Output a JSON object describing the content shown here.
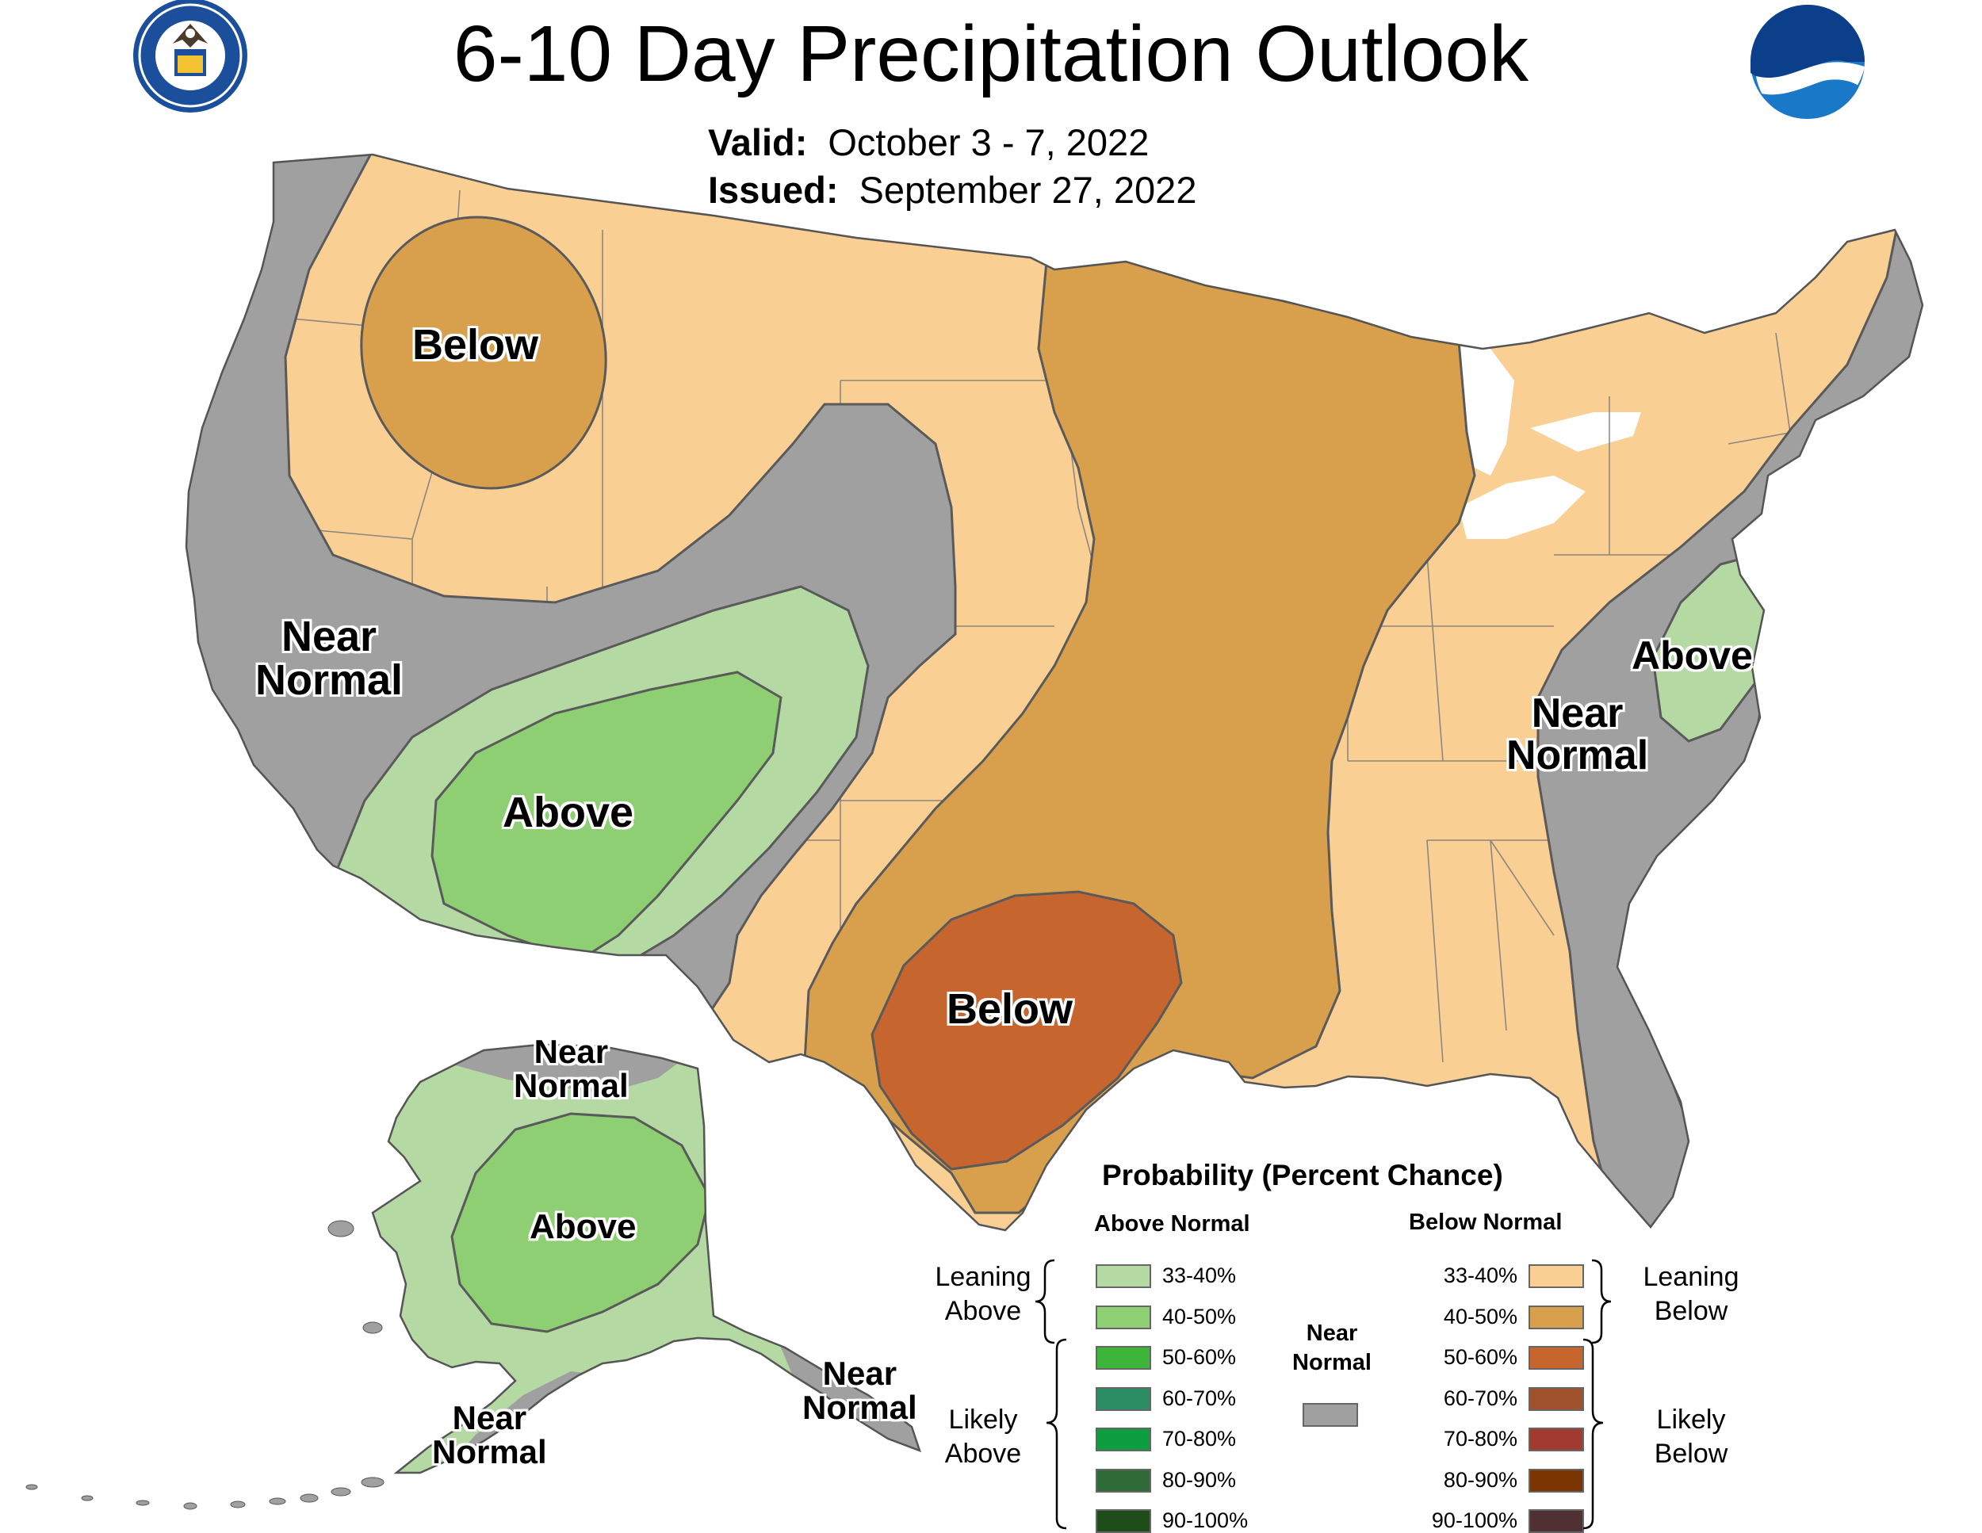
{
  "header": {
    "title": "6-10 Day Precipitation Outlook",
    "valid_label": "Valid:",
    "valid_value": "October 3 - 7, 2022",
    "issued_label": "Issued:",
    "issued_value": "September 27, 2022"
  },
  "logos": {
    "doc_seal": "DEPARTMENT OF COMMERCE · UNITED STATES OF AMERICA",
    "noaa": "NOAA"
  },
  "colors": {
    "near_normal": "#a0a0a0",
    "above_33_40": "#b4d9a3",
    "above_40_50": "#8dcf72",
    "above_50_60": "#3db53b",
    "above_60_70": "#2c8c63",
    "above_70_80": "#0b9d3e",
    "above_80_90": "#2e6a36",
    "above_90_100": "#1f4d19",
    "below_33_40": "#f9cf94",
    "below_40_50": "#d8a04c",
    "below_50_60": "#c7652f",
    "below_60_70": "#a0522d",
    "below_70_80": "#a23b2f",
    "below_80_90": "#7a3500",
    "below_90_100": "#4f3134",
    "lakes": "#ffffff"
  },
  "map_labels": {
    "below_northwest": "Below",
    "near_normal_west": [
      "Near",
      "Normal"
    ],
    "above_southwest": "Above",
    "below_texas": "Below",
    "above_midatlantic": "Above",
    "near_normal_east": [
      "Near",
      "Normal"
    ],
    "alaska_near_normal_north": [
      "Near",
      "Normal"
    ],
    "alaska_above": "Above",
    "alaska_near_normal_southwest": [
      "Near",
      "Normal"
    ],
    "alaska_near_normal_southeast": [
      "Near",
      "Normal"
    ]
  },
  "legend": {
    "title": "Probability (Percent Chance)",
    "above_header": "Above Normal",
    "below_header": "Below Normal",
    "near_label": [
      "Near",
      "Normal"
    ],
    "leaning_above": [
      "Leaning",
      "Above"
    ],
    "likely_above": [
      "Likely",
      "Above"
    ],
    "leaning_below": [
      "Leaning",
      "Below"
    ],
    "likely_below": [
      "Likely",
      "Below"
    ],
    "above_items": [
      {
        "range": "33-40%",
        "color": "#b4d9a3"
      },
      {
        "range": "40-50%",
        "color": "#8dcf72"
      },
      {
        "range": "50-60%",
        "color": "#3db53b"
      },
      {
        "range": "60-70%",
        "color": "#2c8c63"
      },
      {
        "range": "70-80%",
        "color": "#0b9d3e"
      },
      {
        "range": "80-90%",
        "color": "#2e6a36"
      },
      {
        "range": "90-100%",
        "color": "#1f4d19"
      }
    ],
    "below_items": [
      {
        "range": "33-40%",
        "color": "#f9cf94"
      },
      {
        "range": "40-50%",
        "color": "#d8a04c"
      },
      {
        "range": "50-60%",
        "color": "#c7652f"
      },
      {
        "range": "60-70%",
        "color": "#a0522d"
      },
      {
        "range": "70-80%",
        "color": "#a23b2f"
      },
      {
        "range": "80-90%",
        "color": "#7a3500"
      },
      {
        "range": "90-100%",
        "color": "#4f3134"
      }
    ]
  }
}
